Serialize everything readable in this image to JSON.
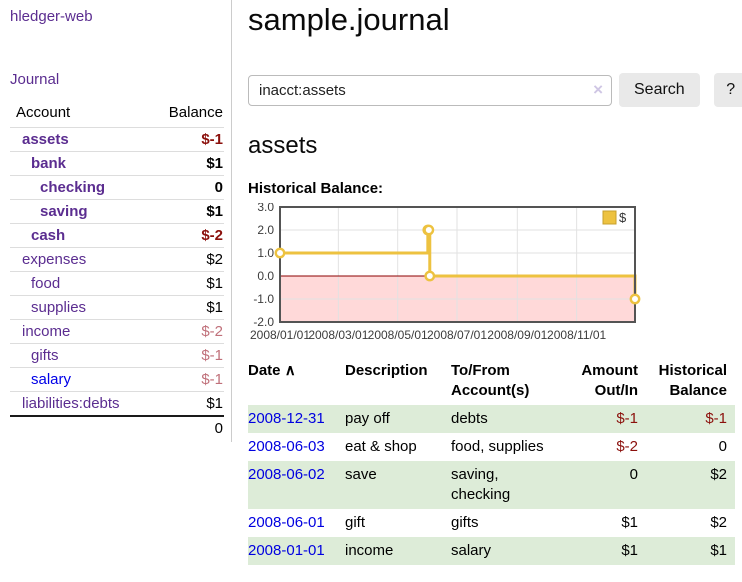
{
  "app": {
    "brand": "hledger-web",
    "nav_journal": "Journal"
  },
  "sidebar": {
    "col_account": "Account",
    "col_balance": "Balance",
    "accounts": [
      {
        "name": "assets",
        "depth": 1,
        "bold": true,
        "balance": "$-1",
        "neg": "strong",
        "link": "purple"
      },
      {
        "name": "bank",
        "depth": 2,
        "bold": true,
        "balance": "$1",
        "neg": "none",
        "link": "purple"
      },
      {
        "name": "checking",
        "depth": 3,
        "bold": true,
        "balance": "0",
        "neg": "none",
        "link": "purple"
      },
      {
        "name": "saving",
        "depth": 3,
        "bold": true,
        "balance": "$1",
        "neg": "none",
        "link": "purple"
      },
      {
        "name": "cash",
        "depth": 2,
        "bold": true,
        "balance": "$-2",
        "neg": "strong",
        "link": "purple"
      },
      {
        "name": "expenses",
        "depth": 1,
        "bold": false,
        "balance": "$2",
        "neg": "none",
        "link": "purple"
      },
      {
        "name": "food",
        "depth": 2,
        "bold": false,
        "balance": "$1",
        "neg": "none",
        "link": "purple"
      },
      {
        "name": "supplies",
        "depth": 2,
        "bold": false,
        "balance": "$1",
        "neg": "none",
        "link": "purple"
      },
      {
        "name": "income",
        "depth": 1,
        "bold": false,
        "balance": "$-2",
        "neg": "soft",
        "link": "purple"
      },
      {
        "name": "gifts",
        "depth": 2,
        "bold": false,
        "balance": "$-1",
        "neg": "soft",
        "link": "purple"
      },
      {
        "name": "salary",
        "depth": 2,
        "bold": false,
        "balance": "$-1",
        "neg": "soft",
        "link": "blue"
      },
      {
        "name": "liabilities:debts",
        "depth": 1,
        "bold": false,
        "balance": "$1",
        "neg": "none",
        "link": "purple"
      }
    ],
    "total": "0"
  },
  "header": {
    "title": "sample.journal"
  },
  "search": {
    "value": "inacct:assets",
    "clear_icon": "×",
    "button_label": "Search",
    "help_label": "?"
  },
  "account_page": {
    "title": "assets",
    "chart_label": "Historical Balance:"
  },
  "chart_data": {
    "type": "line",
    "step": true,
    "title": "Historical Balance:",
    "legend": {
      "label": "$",
      "position": "top-right"
    },
    "series": [
      {
        "name": "$",
        "color": "#edc240",
        "points": [
          {
            "date": "2008/01/01",
            "day": 0,
            "value": 1
          },
          {
            "date": "2008/06/01",
            "day": 152,
            "value": 2
          },
          {
            "date": "2008/06/02",
            "day": 153,
            "value": 2
          },
          {
            "date": "2008/06/03",
            "day": 154,
            "value": 0
          },
          {
            "date": "2008/12/31",
            "day": 365,
            "value": -1
          }
        ]
      }
    ],
    "x_ticks": [
      {
        "label": "2008/01/01",
        "day": 0
      },
      {
        "label": "2008/03/01",
        "day": 60
      },
      {
        "label": "2008/05/01",
        "day": 121
      },
      {
        "label": "2008/07/01",
        "day": 182
      },
      {
        "label": "2008/09/01",
        "day": 244
      },
      {
        "label": "2008/11/01",
        "day": 305
      }
    ],
    "y_ticks": [
      "3.0",
      "2.0",
      "1.0",
      "0.0",
      "-1.0",
      "-2.0"
    ],
    "ylim": [
      -2,
      3
    ],
    "xlim_days": [
      0,
      365
    ],
    "colors": {
      "line": "#edc240",
      "marker_fill": "#ffffff",
      "legend_swatch_border": "#c7a02c",
      "negative_region": "#ffd9d9",
      "zero_line": "#8b0000",
      "grid": "#e2e2e2",
      "plot_border": "#545454",
      "tick_text": "#3c3c3c"
    }
  },
  "register": {
    "sort_icon": "∧",
    "headers": [
      "Date",
      "Description",
      "To/From Account(s)",
      "Amount Out/In",
      "Historical Balance"
    ],
    "rows": [
      {
        "date": "2008-12-31",
        "description": "pay off",
        "accounts": "debts",
        "amount": "$-1",
        "amount_negative": true,
        "balance": "$-1",
        "balance_negative": true
      },
      {
        "date": "2008-06-03",
        "description": "eat & shop",
        "accounts": "food, supplies",
        "amount": "$-2",
        "amount_negative": true,
        "balance": "0",
        "balance_negative": false
      },
      {
        "date": "2008-06-02",
        "description": "save",
        "accounts": "saving, checking",
        "amount": "0",
        "amount_negative": false,
        "balance": "$2",
        "balance_negative": false
      },
      {
        "date": "2008-06-01",
        "description": "gift",
        "accounts": "gifts",
        "amount": "$1",
        "amount_negative": false,
        "balance": "$2",
        "balance_negative": false
      },
      {
        "date": "2008-01-01",
        "description": "income",
        "accounts": "salary",
        "amount": "$1",
        "amount_negative": false,
        "balance": "$1",
        "balance_negative": false
      }
    ]
  }
}
